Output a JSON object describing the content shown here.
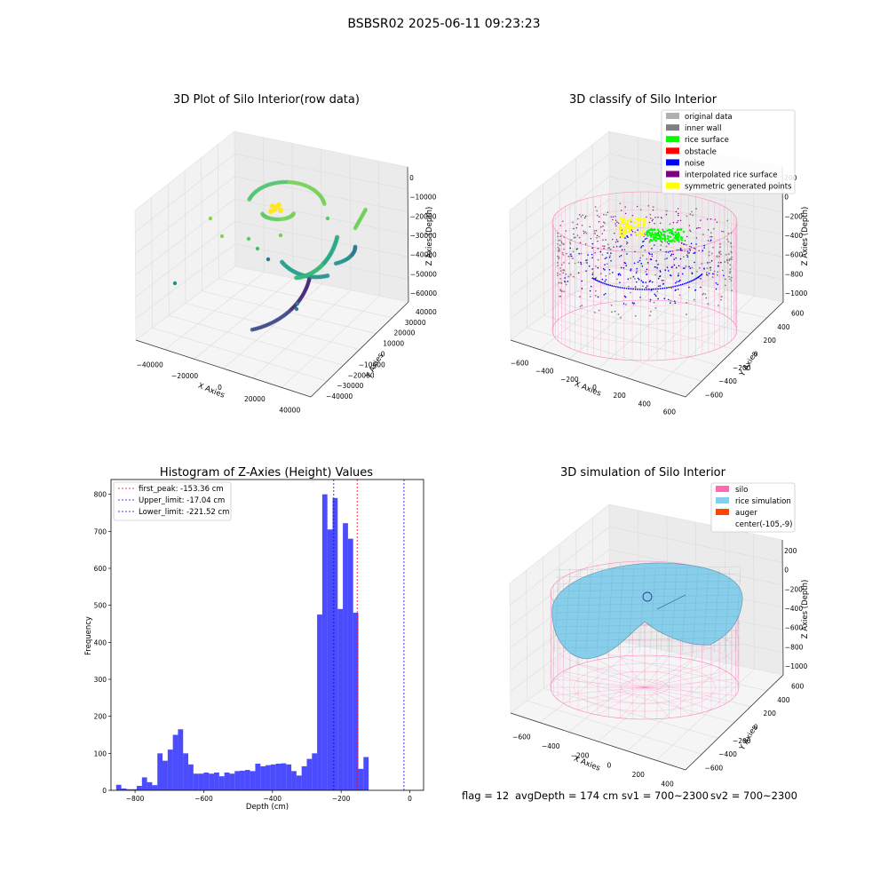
{
  "suptitle": "BSBSR02 2025-06-11 09:23:23",
  "footer": {
    "flag": "flag = 12",
    "avg_depth": "avgDepth = 174 cm",
    "sv1": "sv1 = 700~2300",
    "sv2": "sv2 = 700~2300"
  },
  "panels": {
    "raw": {
      "title": "3D Plot of Silo Interior(row data)",
      "xlabel": "X Axies",
      "ylabel": "Y Axies",
      "zlabel": "Z Axies (Depth)",
      "xticks": [
        "−40000",
        "−20000",
        "0",
        "20000",
        "40000"
      ],
      "yticks": [
        "−40000",
        "−30000",
        "−20000",
        "−10000",
        "0",
        "10000",
        "20000",
        "30000",
        "40000"
      ],
      "zticks": [
        "0",
        "−10000",
        "−20000",
        "−30000",
        "−40000",
        "−50000",
        "−60000"
      ]
    },
    "classify": {
      "title": "3D classify of Silo Interior",
      "xlabel": "X Axies",
      "ylabel": "Y Axies",
      "zlabel": "Z Axies (Depth)",
      "xticks": [
        "−600",
        "−400",
        "−200",
        "0",
        "200",
        "400",
        "600"
      ],
      "yticks": [
        "−600",
        "−400",
        "−200",
        "0",
        "200",
        "400",
        "600"
      ],
      "zticks": [
        "200",
        "0",
        "−200",
        "−400",
        "−600",
        "−800",
        "−1000"
      ],
      "legend": [
        {
          "label": "original data",
          "color": "#b0b0b0"
        },
        {
          "label": "inner wall",
          "color": "#808080"
        },
        {
          "label": "rice surface",
          "color": "#00ff00"
        },
        {
          "label": "obstacle",
          "color": "#ff0000"
        },
        {
          "label": "noise",
          "color": "#0000ff"
        },
        {
          "label": "interpolated rice surface",
          "color": "#800080"
        },
        {
          "label": "symmetric generated points",
          "color": "#ffff00"
        }
      ]
    },
    "simulation": {
      "title": "3D simulation of Silo Interior",
      "xlabel": "X Axies",
      "ylabel": "Y Axies",
      "zlabel": "Z Axies (Depth)",
      "xticks": [
        "−600",
        "−400",
        "−200",
        "0",
        "200",
        "400"
      ],
      "yticks": [
        "−600",
        "−400",
        "−200",
        "0",
        "200",
        "400",
        "600"
      ],
      "zticks": [
        "200",
        "0",
        "−200",
        "−400",
        "−600",
        "−800",
        "−1000"
      ],
      "legend": [
        {
          "label": "silo",
          "color": "#ff69b4"
        },
        {
          "label": "rice simulation",
          "color": "#87ceeb"
        },
        {
          "label": "auger",
          "color": "#ff4500"
        },
        {
          "label": "center(-105,-9)",
          "color": ""
        }
      ]
    }
  },
  "chart_data": {
    "type": "bar",
    "title": "Histogram of Z-Axies (Height) Values",
    "xlabel": "Depth (cm)",
    "ylabel": "Frequency",
    "xlim": [
      -870,
      40
    ],
    "ylim": [
      0,
      840
    ],
    "xticks": [
      -800,
      -600,
      -400,
      -200,
      0
    ],
    "yticks": [
      0,
      100,
      200,
      300,
      400,
      500,
      600,
      700,
      800
    ],
    "bar_color": "#0000ff",
    "bins": {
      "start": -855,
      "width": 15,
      "values": [
        15,
        5,
        3,
        3,
        12,
        35,
        22,
        14,
        100,
        80,
        110,
        150,
        165,
        100,
        70,
        45,
        45,
        48,
        45,
        48,
        38,
        48,
        45,
        52,
        53,
        55,
        52,
        72,
        65,
        68,
        70,
        72,
        73,
        70,
        52,
        40,
        65,
        85,
        100,
        475,
        800,
        705,
        790,
        490,
        722,
        680,
        480,
        58,
        90
      ]
    },
    "lines": [
      {
        "label": "first_peak: -153.36 cm",
        "x": -153.36,
        "color": "#ff0000"
      },
      {
        "label": "Upper_limit: -17.04 cm",
        "x": -17.04,
        "color": "#0000ff"
      },
      {
        "label": "Lower_limit: -221.52 cm",
        "x": -221.52,
        "color": "#0000ff"
      }
    ]
  }
}
